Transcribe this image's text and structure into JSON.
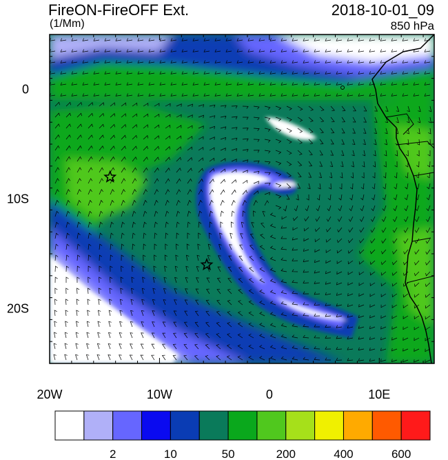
{
  "header": {
    "title": "FireON-FireOFF Ext.",
    "units": "(1/Mm)",
    "time": "2018-10-01_09",
    "level": "850 hPa"
  },
  "map": {
    "lon_range": [
      -20,
      15
    ],
    "lat_range": [
      -25,
      5
    ],
    "x_ticks": [
      {
        "value": -20,
        "label": "20W"
      },
      {
        "value": -10,
        "label": "10W"
      },
      {
        "value": 0,
        "label": "0"
      },
      {
        "value": 10,
        "label": "10E"
      }
    ],
    "y_ticks": [
      {
        "value": 0,
        "label": "0"
      },
      {
        "value": -10,
        "label": "10S"
      },
      {
        "value": -20,
        "label": "20S"
      }
    ],
    "markers": [
      {
        "name": "star-marker",
        "lon": -14.5,
        "lat": -8.0
      },
      {
        "name": "star-marker",
        "lon": -5.7,
        "lat": -16.0
      }
    ]
  },
  "colorbar": {
    "colors": [
      "#ffffff",
      "#b0b0f8",
      "#6666ff",
      "#0a0af0",
      "#0a3cb4",
      "#0a7a5a",
      "#0aa81c",
      "#50c81e",
      "#a6e01a",
      "#f0f000",
      "#ffaa00",
      "#ff5a00",
      "#ff1a1a"
    ],
    "labels": [
      {
        "after_box": 1,
        "text": "2"
      },
      {
        "after_box": 3,
        "text": "10"
      },
      {
        "after_box": 5,
        "text": "50"
      },
      {
        "after_box": 7,
        "text": "200"
      },
      {
        "after_box": 9,
        "text": "400"
      },
      {
        "after_box": 11,
        "text": "600"
      }
    ]
  }
}
